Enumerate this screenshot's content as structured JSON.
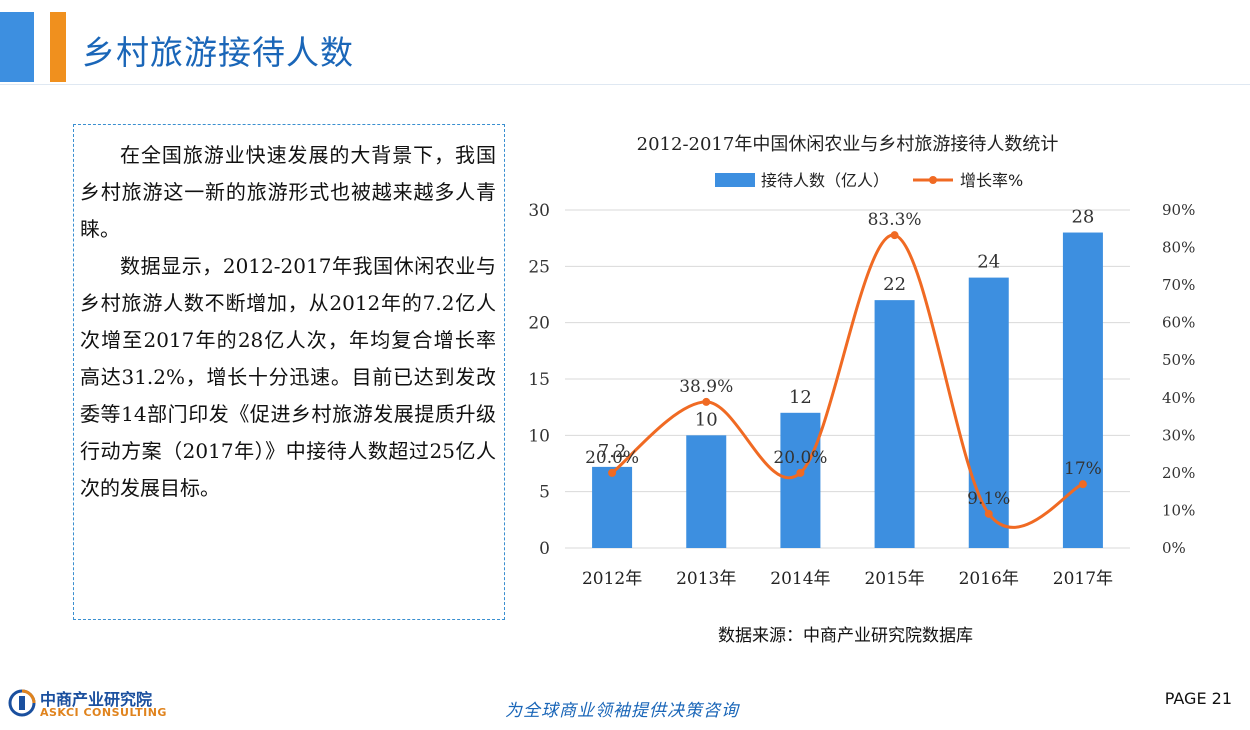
{
  "header": {
    "title": "乡村旅游接待人数"
  },
  "textbox": {
    "para1": "在全国旅游业快速发展的大背景下，我国乡村旅游这一新的旅游形式也被越来越多人青睐。",
    "para2": "数据显示，2012-2017年我国休闲农业与乡村旅游人数不断增加，从2012年的7.2亿人次增至2017年的28亿人次，年均复合增长率高达31.2%，增长十分迅速。目前已达到发改委等14部门印发《促进乡村旅游发展提质升级行动方案（2017年）》中接待人数超过25亿人次的发展目标。"
  },
  "chart_data": {
    "type": "bar",
    "title": "2012-2017年中国休闲农业与乡村旅游接待人数统计",
    "categories": [
      "2012年",
      "2013年",
      "2014年",
      "2015年",
      "2016年",
      "2017年"
    ],
    "series": [
      {
        "name": "接待人数（亿人）",
        "type": "bar",
        "axis": "left",
        "color": "#3d8fe0",
        "values": [
          7.2,
          10,
          12,
          22,
          24,
          28
        ],
        "labels": [
          "7.2",
          "10",
          "12",
          "22",
          "24",
          "28"
        ]
      },
      {
        "name": "增长率%",
        "type": "line",
        "axis": "right",
        "color": "#f06a23",
        "values": [
          20.0,
          38.9,
          20.0,
          83.3,
          9.1,
          17
        ],
        "labels": [
          "20.0%",
          "38.9%",
          "20.0%",
          "83.3%",
          "9.1%",
          "17%"
        ]
      }
    ],
    "ylim": [
      0,
      30
    ],
    "yticks": [
      "0",
      "5",
      "10",
      "15",
      "20",
      "25",
      "30"
    ],
    "y2lim": [
      0,
      90
    ],
    "y2ticks": [
      "0%",
      "10%",
      "20%",
      "30%",
      "40%",
      "50%",
      "60%",
      "70%",
      "80%",
      "90%"
    ],
    "grid": true,
    "legend": "top"
  },
  "source": "数据来源：中商产业研究院数据库",
  "footer": {
    "logo_cn": "中商产业研究院",
    "logo_en": "ASKCI CONSULTING",
    "slogan": "为全球商业领袖提供决策咨询",
    "page": "PAGE 21"
  }
}
